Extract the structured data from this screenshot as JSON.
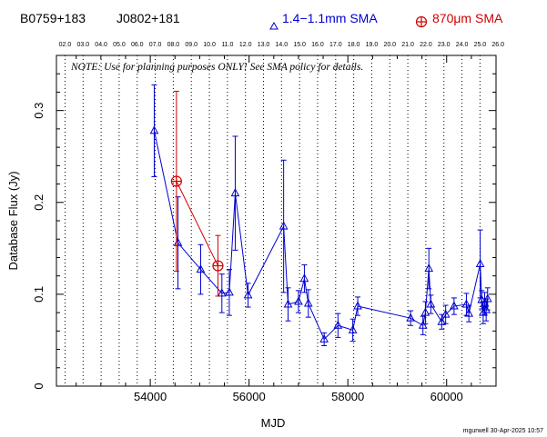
{
  "header": {
    "source_b1950": "B0759+183",
    "source_j2000": "J0802+181",
    "legend_series1": "1.4−1.1mm SMA",
    "legend_series2": "870μm SMA",
    "series1_color": "#0000d0",
    "series2_color": "#d00000"
  },
  "footer": {
    "signature": "mgurwell 30-Apr-2025 10:57"
  },
  "chart_data": {
    "type": "scatter",
    "xlabel": "MJD",
    "ylabel": "Database Flux (Jy)",
    "note": "NOTE: Use for planning purposes ONLY!  See SMA policy for details.",
    "xlim": [
      52100,
      61000
    ],
    "ylim": [
      0,
      0.36
    ],
    "xticks": [
      54000,
      56000,
      58000,
      60000
    ],
    "yticks": [
      0,
      0.1,
      0.2,
      0.3
    ],
    "ytick_labels": [
      "0",
      "0.1",
      "0.2",
      "0.3"
    ],
    "top_axis": {
      "labels": [
        "02.0",
        "03.0",
        "04.0",
        "05.0",
        "06.0",
        "07.0",
        "08.0",
        "09.0",
        "10.0",
        "11.0",
        "12.0",
        "13.0",
        "14.0",
        "15.0",
        "16.0",
        "17.0",
        "18.0",
        "19.0",
        "20.0",
        "21.0",
        "22.0",
        "23.0",
        "24.0",
        "25.0",
        "26.0"
      ],
      "years": [
        2002,
        2003,
        2004,
        2005,
        2006,
        2007,
        2008,
        2009,
        2010,
        2011,
        2012,
        2013,
        2014,
        2015,
        2016,
        2017,
        2018,
        2019,
        2020,
        2021,
        2022,
        2023,
        2024,
        2025,
        2026
      ]
    },
    "grid": "vertical dotted lines at each year start",
    "series": [
      {
        "name": "1.4−1.1mm SMA",
        "marker": "triangle",
        "color": "#0000d0",
        "points": [
          {
            "x": 54080,
            "y": 0.278,
            "err": 0.05
          },
          {
            "x": 54560,
            "y": 0.156,
            "err": 0.05
          },
          {
            "x": 55020,
            "y": 0.127,
            "err": 0.027
          },
          {
            "x": 55450,
            "y": 0.101,
            "err": 0.021
          },
          {
            "x": 55600,
            "y": 0.102,
            "err": 0.025
          },
          {
            "x": 55720,
            "y": 0.21,
            "err": 0.062
          },
          {
            "x": 55980,
            "y": 0.099,
            "err": 0.013
          },
          {
            "x": 56700,
            "y": 0.174,
            "err": 0.072
          },
          {
            "x": 56790,
            "y": 0.089,
            "err": 0.018
          },
          {
            "x": 57000,
            "y": 0.092,
            "err": 0.012
          },
          {
            "x": 57120,
            "y": 0.117,
            "err": 0.015
          },
          {
            "x": 57200,
            "y": 0.09,
            "err": 0.015
          },
          {
            "x": 57520,
            "y": 0.051,
            "err": 0.007
          },
          {
            "x": 57800,
            "y": 0.066,
            "err": 0.013
          },
          {
            "x": 58100,
            "y": 0.061,
            "err": 0.012
          },
          {
            "x": 58200,
            "y": 0.087,
            "err": 0.01
          },
          {
            "x": 59270,
            "y": 0.074,
            "err": 0.008
          },
          {
            "x": 59520,
            "y": 0.066,
            "err": 0.01
          },
          {
            "x": 59570,
            "y": 0.08,
            "err": 0.012
          },
          {
            "x": 59640,
            "y": 0.128,
            "err": 0.022
          },
          {
            "x": 59680,
            "y": 0.089,
            "err": 0.01
          },
          {
            "x": 59900,
            "y": 0.07,
            "err": 0.008
          },
          {
            "x": 59980,
            "y": 0.078,
            "err": 0.01
          },
          {
            "x": 60150,
            "y": 0.087,
            "err": 0.009
          },
          {
            "x": 60400,
            "y": 0.089,
            "err": 0.012
          },
          {
            "x": 60450,
            "y": 0.079,
            "err": 0.009
          },
          {
            "x": 60680,
            "y": 0.133,
            "err": 0.037
          },
          {
            "x": 60710,
            "y": 0.094,
            "err": 0.01
          },
          {
            "x": 60740,
            "y": 0.08,
            "err": 0.012
          },
          {
            "x": 60770,
            "y": 0.09,
            "err": 0.012
          },
          {
            "x": 60800,
            "y": 0.083,
            "err": 0.012
          },
          {
            "x": 60830,
            "y": 0.095,
            "err": 0.012
          }
        ]
      },
      {
        "name": "870μm SMA",
        "marker": "circle-plus",
        "color": "#d00000",
        "points": [
          {
            "x": 54530,
            "y": 0.223,
            "err": 0.098
          },
          {
            "x": 55370,
            "y": 0.131,
            "err": 0.033
          }
        ]
      }
    ]
  }
}
